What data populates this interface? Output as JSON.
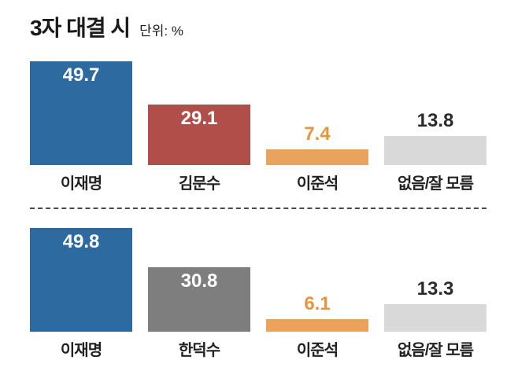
{
  "title": "3자 대결 시",
  "unit_label": "단위: %",
  "colors": {
    "blue": "#2d6a9f",
    "red": "#b04e4a",
    "orange": "#eaa35d",
    "light_gray": "#d9d9d9",
    "mid_gray": "#7e7e7e",
    "orange_text": "#e8963c",
    "dark_text": "#2b2b2b"
  },
  "chart_data": [
    {
      "type": "bar",
      "title": "3자 대결 시 (이재명·김문수·이준석)",
      "categories": [
        "이재명",
        "김문수",
        "이준석",
        "없음/잘 모름"
      ],
      "values": [
        49.7,
        29.1,
        7.4,
        13.8
      ],
      "bar_colors": [
        "#2d6a9f",
        "#b04e4a",
        "#eaa35d",
        "#d9d9d9"
      ],
      "value_positions": [
        "inside",
        "inside",
        "above",
        "above"
      ],
      "value_colors": [
        "#ffffff",
        "#ffffff",
        "#e8963c",
        "#2b2b2b"
      ],
      "unit": "%",
      "ylim": [
        0,
        55
      ],
      "grid": false,
      "legend": false
    },
    {
      "type": "bar",
      "title": "3자 대결 시 (이재명·한덕수·이준석)",
      "categories": [
        "이재명",
        "한덕수",
        "이준석",
        "없음/잘 모름"
      ],
      "values": [
        49.8,
        30.8,
        6.1,
        13.3
      ],
      "bar_colors": [
        "#2d6a9f",
        "#7e7e7e",
        "#eaa35d",
        "#d9d9d9"
      ],
      "value_positions": [
        "inside",
        "inside",
        "above",
        "above"
      ],
      "value_colors": [
        "#ffffff",
        "#ffffff",
        "#e8963c",
        "#2b2b2b"
      ],
      "unit": "%",
      "ylim": [
        0,
        55
      ],
      "grid": false,
      "legend": false
    }
  ]
}
